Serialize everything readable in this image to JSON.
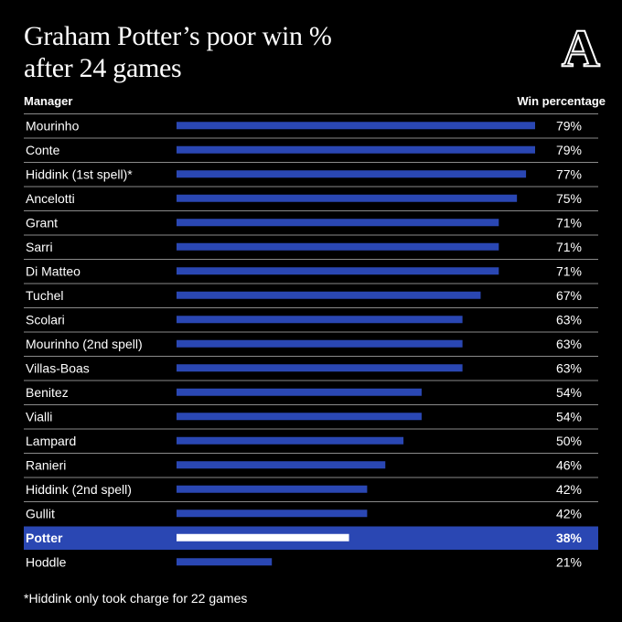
{
  "title_line1": "Graham Potter’s poor win %",
  "title_line2": "after 24 games",
  "logo_letter": "A",
  "footnote": "*Hiddink only took charge for 22 games",
  "colors": {
    "background": "#000000",
    "bar": "#2a47b3",
    "highlight_row": "#2a47b3",
    "highlight_bar": "#ffffff",
    "divider": "#8a8a8a"
  },
  "chart_data": {
    "type": "bar",
    "orientation": "horizontal",
    "category_header": "Manager",
    "value_header": "Win percentage",
    "highlight": "Potter",
    "categories": [
      "Mourinho",
      "Conte",
      "Hiddink (1st spell)*",
      "Ancelotti",
      "Grant",
      "Sarri",
      "Di Matteo",
      "Tuchel",
      "Scolari",
      "Mourinho (2nd spell)",
      "Villas-Boas",
      "Benitez",
      "Vialli",
      "Lampard",
      "Ranieri",
      "Hiddink (2nd spell)",
      "Gullit",
      "Potter",
      "Hoddle"
    ],
    "values": [
      79,
      79,
      77,
      75,
      71,
      71,
      71,
      67,
      63,
      63,
      63,
      54,
      54,
      50,
      46,
      42,
      42,
      38,
      21
    ],
    "value_labels": [
      "79%",
      "79%",
      "77%",
      "75%",
      "71%",
      "71%",
      "71%",
      "67%",
      "63%",
      "63%",
      "63%",
      "54%",
      "54%",
      "50%",
      "46%",
      "42%",
      "42%",
      "38%",
      "21%"
    ],
    "xlim": [
      0,
      79
    ]
  }
}
